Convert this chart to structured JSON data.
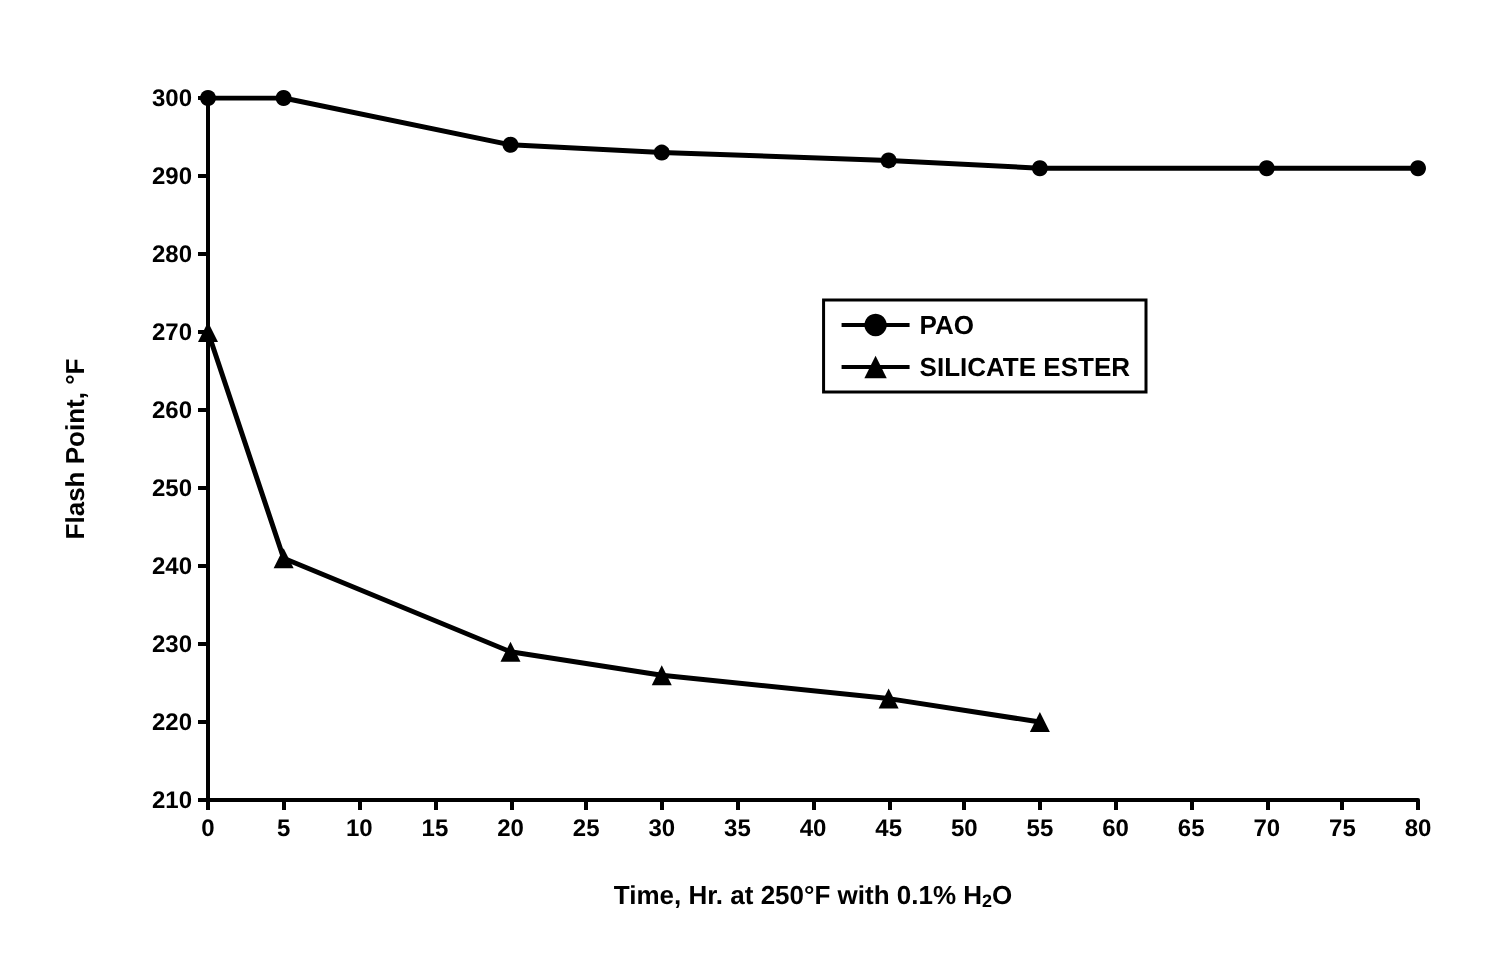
{
  "chart_data": {
    "type": "line",
    "xlabel": "Time, Hr. at 250°F with 0.1% H$_{2}$O",
    "ylabel": "Flash Point, °F",
    "x": [
      0,
      5,
      20,
      30,
      45,
      55,
      70,
      80
    ],
    "series": [
      {
        "name": "PAO",
        "color": "#000000",
        "marker": "circle",
        "values": [
          300,
          300,
          294,
          293,
          292,
          291,
          291,
          291
        ]
      },
      {
        "name": "SILICATE ESTER",
        "color": "#000000",
        "marker": "triangle",
        "values": [
          270,
          241,
          229,
          226,
          223,
          220,
          null,
          null
        ]
      }
    ],
    "xlim": [
      0,
      80
    ],
    "xticks": [
      0,
      5,
      10,
      15,
      20,
      25,
      30,
      35,
      40,
      45,
      50,
      55,
      60,
      65,
      70,
      75,
      80
    ],
    "ylim": [
      210,
      300
    ],
    "yticks": [
      210,
      220,
      230,
      240,
      250,
      260,
      270,
      280,
      290,
      300
    ],
    "grid": false,
    "legend": "right",
    "line_style": "solid"
  }
}
